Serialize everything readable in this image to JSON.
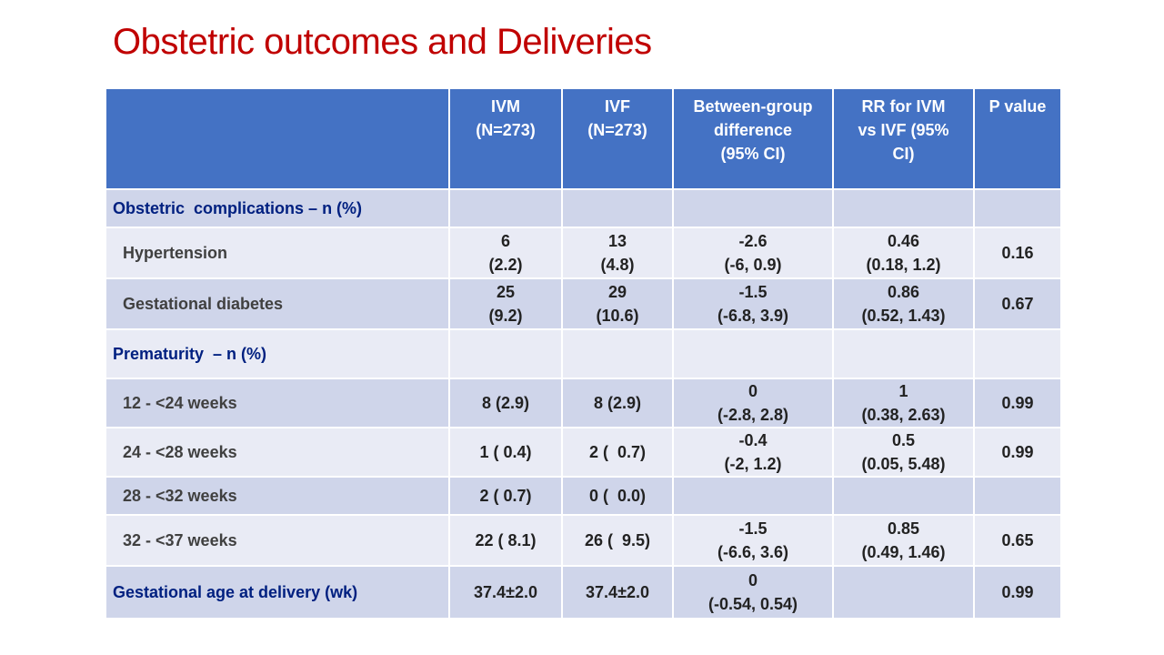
{
  "title": "Obstetric outcomes and Deliveries",
  "table": {
    "headers": [
      {
        "lines": [
          ""
        ]
      },
      {
        "lines": [
          "IVM",
          "(N=273)"
        ]
      },
      {
        "lines": [
          "IVF",
          "(N=273)"
        ]
      },
      {
        "lines": [
          "Between-group",
          "difference",
          "(95% CI)"
        ]
      },
      {
        "lines": [
          "RR for IVM",
          "vs IVF (95%",
          "CI)"
        ]
      },
      {
        "lines": [
          "P value"
        ]
      }
    ],
    "rows": [
      {
        "label": "Obstetric  complications – n (%)",
        "section": true,
        "cells": [
          [
            ""
          ],
          [
            ""
          ],
          [
            ""
          ],
          [
            ""
          ],
          [
            ""
          ]
        ]
      },
      {
        "label": "Hypertension",
        "section": false,
        "cells": [
          [
            "6",
            "(2.2)"
          ],
          [
            "13",
            "(4.8)"
          ],
          [
            "-2.6",
            "(-6, 0.9)"
          ],
          [
            "0.46",
            "(0.18, 1.2)"
          ],
          [
            "0.16"
          ]
        ]
      },
      {
        "label": "Gestational diabetes",
        "section": false,
        "cells": [
          [
            "25",
            "(9.2)"
          ],
          [
            "29",
            "(10.6)"
          ],
          [
            "-1.5",
            "(-6.8, 3.9)"
          ],
          [
            "0.86",
            "(0.52, 1.43)"
          ],
          [
            "0.67"
          ]
        ]
      },
      {
        "label": "Prematurity  – n (%)",
        "section": true,
        "cells": [
          [
            ""
          ],
          [
            ""
          ],
          [
            ""
          ],
          [
            ""
          ],
          [
            ""
          ]
        ]
      },
      {
        "label": "12 - <24 weeks",
        "section": false,
        "cells": [
          [
            "8 (2.9)"
          ],
          [
            "8 (2.9)"
          ],
          [
            "0",
            "(-2.8, 2.8)"
          ],
          [
            "1",
            "(0.38, 2.63)"
          ],
          [
            "0.99"
          ]
        ]
      },
      {
        "label": "24 - <28 weeks",
        "section": false,
        "cells": [
          [
            "1 ( 0.4)"
          ],
          [
            "2 (  0.7)"
          ],
          [
            "-0.4",
            "(-2, 1.2)"
          ],
          [
            "0.5",
            "(0.05, 5.48)"
          ],
          [
            "0.99"
          ]
        ]
      },
      {
        "label": "28 - <32 weeks",
        "section": false,
        "cells": [
          [
            "2 ( 0.7)"
          ],
          [
            "0 (  0.0)"
          ],
          [
            ""
          ],
          [
            ""
          ],
          [
            ""
          ]
        ]
      },
      {
        "label": "32 - <37 weeks",
        "section": false,
        "cells": [
          [
            "22 ( 8.1)"
          ],
          [
            "26 (  9.5)"
          ],
          [
            "-1.5",
            "(-6.6, 3.6)"
          ],
          [
            "0.85",
            "(0.49, 1.46)"
          ],
          [
            "0.65"
          ]
        ]
      },
      {
        "label": "Gestational age at delivery (wk)",
        "section": true,
        "cells": [
          [
            "37.4±2.0"
          ],
          [
            "37.4±2.0"
          ],
          [
            "0",
            "(-0.54, 0.54)"
          ],
          [
            ""
          ],
          [
            "0.99"
          ]
        ]
      }
    ]
  }
}
